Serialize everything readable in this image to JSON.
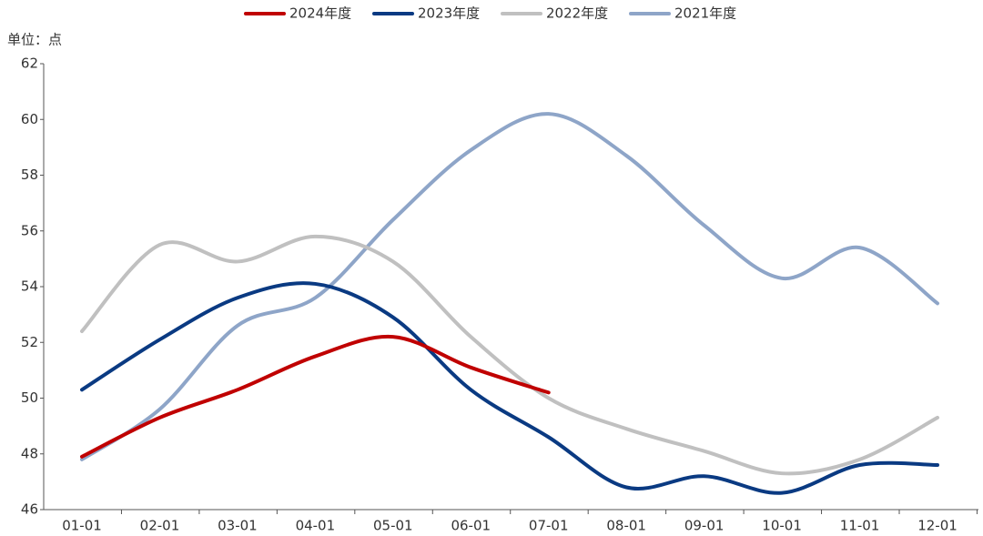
{
  "chart_data": {
    "type": "line",
    "unit_label": "单位：点",
    "categories": [
      "01-01",
      "02-01",
      "03-01",
      "04-01",
      "05-01",
      "06-01",
      "07-01",
      "08-01",
      "09-01",
      "10-01",
      "11-01",
      "12-01"
    ],
    "series": [
      {
        "name": "2024年度",
        "color": "#c00000",
        "values": [
          47.9,
          49.3,
          50.3,
          51.5,
          52.2,
          51.1,
          50.2,
          null,
          null,
          null,
          null,
          null
        ]
      },
      {
        "name": "2023年度",
        "color": "#0a3a82",
        "values": [
          50.3,
          52.1,
          53.6,
          54.1,
          52.9,
          50.3,
          48.6,
          46.8,
          47.2,
          46.6,
          47.6,
          47.6
        ]
      },
      {
        "name": "2022年度",
        "color": "#c0c0c0",
        "values": [
          52.4,
          55.5,
          54.9,
          55.8,
          54.9,
          52.2,
          50.0,
          48.9,
          48.1,
          47.3,
          47.8,
          49.3
        ]
      },
      {
        "name": "2021年度",
        "color": "#8ea5c8",
        "values": [
          47.8,
          49.6,
          52.6,
          53.6,
          56.4,
          58.9,
          60.2,
          58.7,
          56.2,
          54.3,
          55.4,
          53.4
        ]
      }
    ],
    "ylim": [
      46,
      62
    ],
    "yticks": [
      46,
      48,
      50,
      52,
      54,
      56,
      58,
      60,
      62
    ],
    "legend": "top"
  }
}
